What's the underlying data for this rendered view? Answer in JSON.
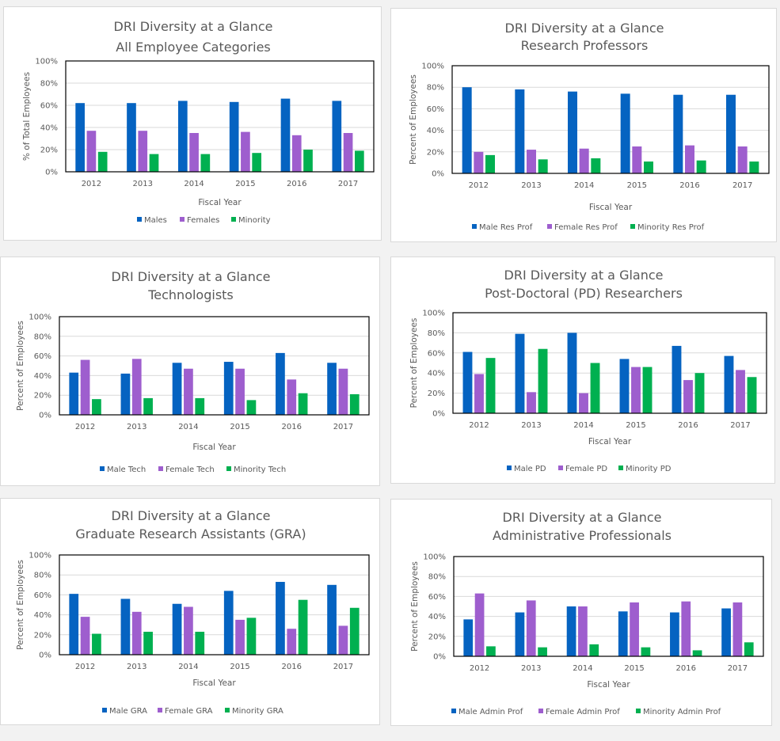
{
  "colors": {
    "male": "#0563C1",
    "female": "#9E5ECE",
    "minority": "#00B050"
  },
  "chart_data": [
    {
      "type": "bar",
      "title": "DRI Diversity at a Glance",
      "subtitle": "All Employee Categories",
      "xlabel": "Fiscal Year",
      "ylabel": "% of Total Employees",
      "ylim": [
        0,
        100
      ],
      "yticks": [
        "0%",
        "20%",
        "40%",
        "60%",
        "80%",
        "100%"
      ],
      "grid": true,
      "legend": "bottom",
      "categories": [
        "2012",
        "2013",
        "2014",
        "2015",
        "2016",
        "2017"
      ],
      "series": [
        {
          "name": "Males",
          "values": [
            62,
            62,
            64,
            63,
            66,
            64
          ]
        },
        {
          "name": "Females",
          "values": [
            37,
            37,
            35,
            36,
            33,
            35
          ]
        },
        {
          "name": "Minority",
          "values": [
            18,
            16,
            16,
            17,
            20,
            19
          ]
        }
      ]
    },
    {
      "type": "bar",
      "title": "DRI Diversity at a Glance",
      "subtitle": "Research Professors",
      "xlabel": "Fiscal Year",
      "ylabel": "Percent of Employees",
      "ylim": [
        0,
        100
      ],
      "yticks": [
        "0%",
        "20%",
        "40%",
        "60%",
        "80%",
        "100%"
      ],
      "grid": true,
      "legend": "bottom",
      "categories": [
        "2012",
        "2013",
        "2014",
        "2015",
        "2016",
        "2017"
      ],
      "series": [
        {
          "name": "Male Res Prof",
          "values": [
            80,
            78,
            76,
            74,
            73,
            73
          ]
        },
        {
          "name": "Female Res Prof",
          "values": [
            20,
            22,
            23,
            25,
            26,
            25
          ]
        },
        {
          "name": "Minority Res Prof",
          "values": [
            17,
            13,
            14,
            11,
            12,
            11
          ]
        }
      ]
    },
    {
      "type": "bar",
      "title": "DRI Diversity at a Glance",
      "subtitle": "Technologists",
      "xlabel": "Fiscal Year",
      "ylabel": "Percent of Employees",
      "ylim": [
        0,
        100
      ],
      "yticks": [
        "0%",
        "20%",
        "40%",
        "60%",
        "80%",
        "100%"
      ],
      "grid": true,
      "legend": "bottom",
      "categories": [
        "2012",
        "2013",
        "2014",
        "2015",
        "2016",
        "2017"
      ],
      "series": [
        {
          "name": "Male Tech",
          "values": [
            43,
            42,
            53,
            54,
            63,
            53
          ]
        },
        {
          "name": "Female Tech",
          "values": [
            56,
            57,
            47,
            47,
            36,
            47
          ]
        },
        {
          "name": "Minority Tech",
          "values": [
            16,
            17,
            17,
            15,
            22,
            21
          ]
        }
      ]
    },
    {
      "type": "bar",
      "title": "DRI Diversity at a Glance",
      "subtitle": "Post-Doctoral (PD) Researchers",
      "xlabel": "Fiscal Year",
      "ylabel": "Percent of Employees",
      "ylim": [
        0,
        100
      ],
      "yticks": [
        "0%",
        "20%",
        "40%",
        "60%",
        "80%",
        "100%"
      ],
      "grid": true,
      "legend": "bottom",
      "categories": [
        "2012",
        "2013",
        "2014",
        "2015",
        "2016",
        "2017"
      ],
      "series": [
        {
          "name": "Male PD",
          "values": [
            61,
            79,
            80,
            54,
            67,
            57
          ]
        },
        {
          "name": "Female PD",
          "values": [
            39,
            21,
            20,
            46,
            33,
            43
          ]
        },
        {
          "name": "Minority PD",
          "values": [
            55,
            64,
            50,
            46,
            40,
            36
          ]
        }
      ]
    },
    {
      "type": "bar",
      "title": "DRI Diversity at a Glance",
      "subtitle": "Graduate Research Assistants (GRA)",
      "xlabel": "Fiscal Year",
      "ylabel": "Percent of Employees",
      "ylim": [
        0,
        100
      ],
      "yticks": [
        "0%",
        "20%",
        "40%",
        "60%",
        "80%",
        "100%"
      ],
      "grid": true,
      "legend": "bottom",
      "categories": [
        "2012",
        "2013",
        "2014",
        "2015",
        "2016",
        "2017"
      ],
      "series": [
        {
          "name": "Male GRA",
          "values": [
            61,
            56,
            51,
            64,
            73,
            70
          ]
        },
        {
          "name": "Female GRA",
          "values": [
            38,
            43,
            48,
            35,
            26,
            29
          ]
        },
        {
          "name": "Minority GRA",
          "values": [
            21,
            23,
            23,
            37,
            55,
            47
          ]
        }
      ]
    },
    {
      "type": "bar",
      "title": "DRI Diversity at a Glance",
      "subtitle": "Administrative Professionals",
      "xlabel": "Fiscal Year",
      "ylabel": "Percent of Employees",
      "ylim": [
        0,
        100
      ],
      "yticks": [
        "0%",
        "20%",
        "40%",
        "60%",
        "80%",
        "100%"
      ],
      "grid": true,
      "legend": "bottom",
      "categories": [
        "2012",
        "2013",
        "2014",
        "2015",
        "2016",
        "2017"
      ],
      "series": [
        {
          "name": "Male Admin Prof",
          "values": [
            37,
            44,
            50,
            45,
            44,
            48
          ]
        },
        {
          "name": "Female Admin Prof",
          "values": [
            63,
            56,
            50,
            54,
            55,
            54
          ]
        },
        {
          "name": "Minority Admin Prof",
          "values": [
            10,
            9,
            12,
            9,
            6,
            14
          ]
        }
      ]
    }
  ]
}
